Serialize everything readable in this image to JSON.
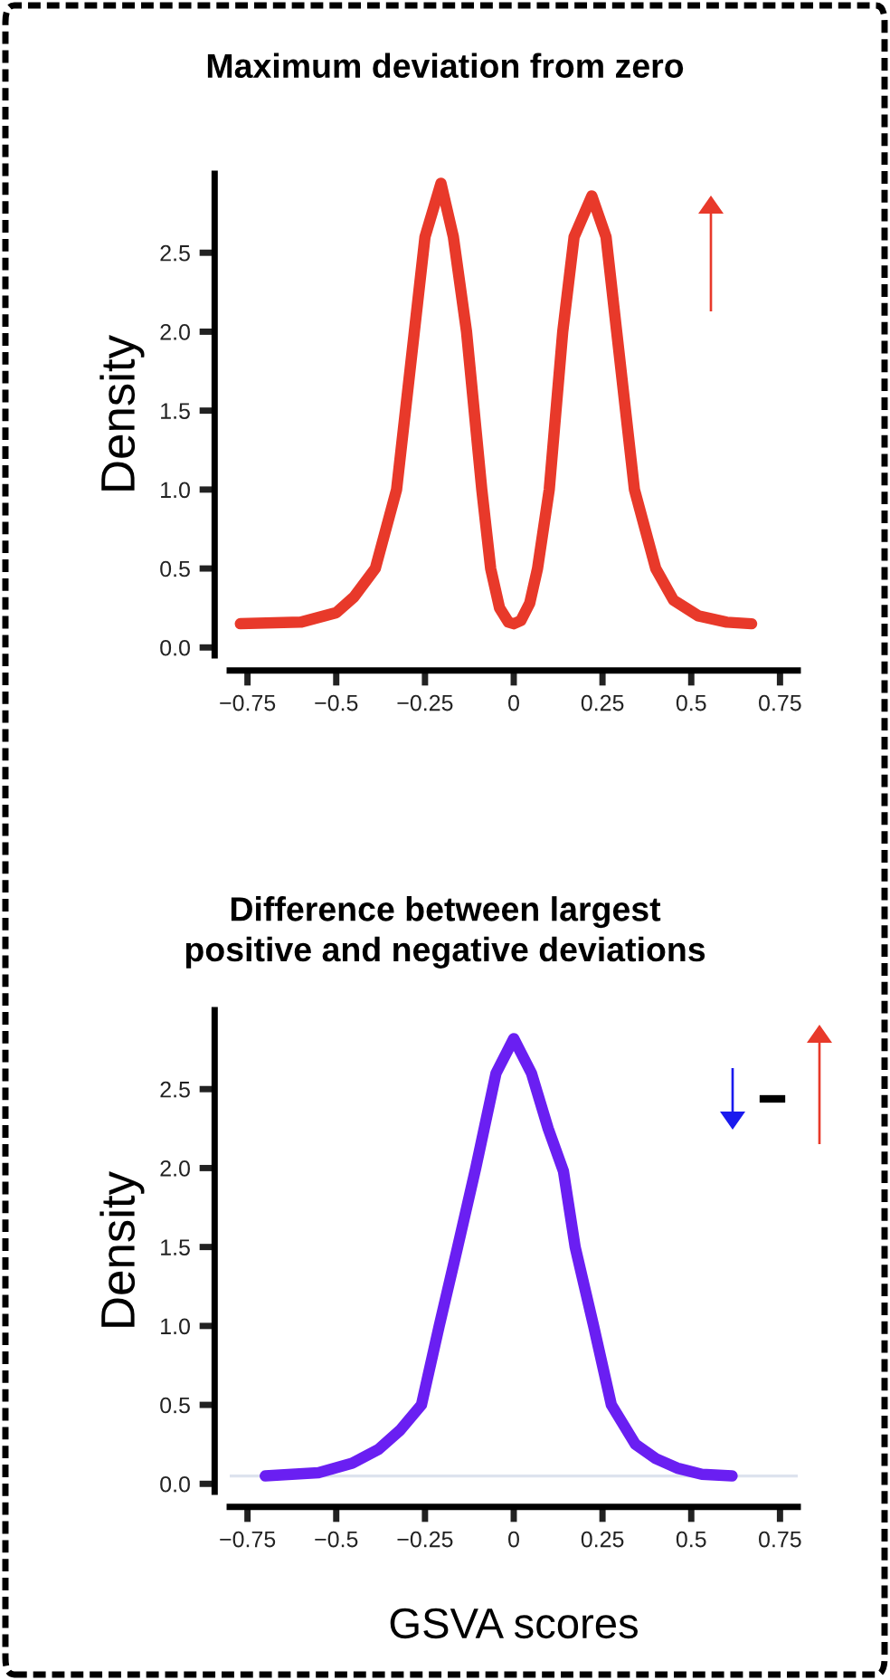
{
  "chart_data": [
    {
      "type": "line",
      "title": "Maximum deviation from zero",
      "ylabel": "Density",
      "series": [
        {
          "color": "#e8392a",
          "x": [
            -0.77,
            -0.6,
            -0.5,
            -0.45,
            -0.39,
            -0.33,
            -0.28,
            -0.25,
            -0.205,
            -0.17,
            -0.133,
            -0.09,
            -0.065,
            -0.04,
            -0.015,
            0,
            0.02,
            0.045,
            0.067,
            0.1,
            0.138,
            0.17,
            0.22,
            0.26,
            0.29,
            0.34,
            0.4,
            0.45,
            0.52,
            0.6,
            0.67
          ],
          "values": [
            0.15,
            0.16,
            0.22,
            0.32,
            0.5,
            1.0,
            2.0,
            2.6,
            2.94,
            2.6,
            2.0,
            1.0,
            0.5,
            0.25,
            0.16,
            0.15,
            0.17,
            0.28,
            0.5,
            1.0,
            2.0,
            2.6,
            2.86,
            2.6,
            2.0,
            1.0,
            0.5,
            0.3,
            0.2,
            0.16,
            0.15
          ]
        }
      ],
      "xlim": [
        -0.8,
        0.8
      ],
      "ylim": [
        -0.05,
        3.0
      ],
      "xticks": [
        {
          "value": -0.75,
          "label": "−0.75"
        },
        {
          "value": -0.5,
          "label": "−0.5"
        },
        {
          "value": -0.25,
          "label": "−0.25"
        },
        0,
        0.25,
        0.5,
        0.75
      ],
      "yticks": [
        {
          "value": 0,
          "label": "0.0"
        },
        0.5,
        {
          "value": 1,
          "label": "1.0"
        },
        1.5,
        {
          "value": 2,
          "label": "2.0"
        },
        2.5
      ],
      "grid": false,
      "legend": false,
      "marker": "none",
      "line_style": "solid"
    },
    {
      "type": "line",
      "title": "Difference between largest\npositive and negative deviations",
      "ylabel": "Density",
      "xlabel": "GSVA scores",
      "series": [
        {
          "color": "#6a1ff2",
          "x": [
            -0.7,
            -0.55,
            -0.455,
            -0.38,
            -0.32,
            -0.26,
            -0.21,
            -0.158,
            -0.107,
            -0.05,
            0,
            0.05,
            0.097,
            0.14,
            0.173,
            0.225,
            0.275,
            0.343,
            0.4,
            0.46,
            0.53,
            0.615
          ],
          "values": [
            0.05,
            0.07,
            0.13,
            0.22,
            0.34,
            0.5,
            1.0,
            1.5,
            2.0,
            2.6,
            2.82,
            2.6,
            2.25,
            1.98,
            1.5,
            1.0,
            0.5,
            0.25,
            0.16,
            0.1,
            0.06,
            0.05
          ]
        }
      ],
      "ref_lines": [
        {
          "axis": "y",
          "value": 0.05,
          "color": "#dde3ee"
        }
      ],
      "xlim": [
        -0.8,
        0.8
      ],
      "ylim": [
        -0.05,
        3.0
      ],
      "xticks": [
        {
          "value": -0.75,
          "label": "−0.75"
        },
        {
          "value": -0.5,
          "label": "−0.5"
        },
        {
          "value": -0.25,
          "label": "−0.25"
        },
        0,
        0.25,
        0.5,
        0.75
      ],
      "yticks": [
        {
          "value": 0,
          "label": "0.0"
        },
        0.5,
        {
          "value": 1,
          "label": "1.0"
        },
        1.5,
        {
          "value": 2,
          "label": "2.0"
        },
        2.5
      ],
      "grid": false,
      "legend": false,
      "marker": "none",
      "line_style": "solid"
    }
  ]
}
